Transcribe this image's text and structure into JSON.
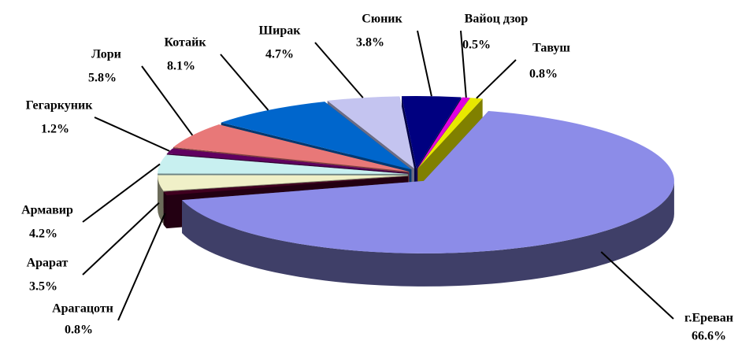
{
  "chart_data": {
    "type": "pie",
    "categories": [
      "г.Ереван",
      "Арагацотн",
      "Арарат",
      "Армавир",
      "Гегаркуник",
      "Лори",
      "Котайк",
      "Ширак",
      "Сюник",
      "Вайоц дзор",
      "Тавуш"
    ],
    "values": [
      66.6,
      0.8,
      3.5,
      4.2,
      1.2,
      5.8,
      8.1,
      4.7,
      3.8,
      0.5,
      0.8
    ],
    "value_labels": [
      "66.6%",
      "0.8%",
      "3.5%",
      "4.2%",
      "1.2%",
      "5.8%",
      "8.1%",
      "4.7%",
      "3.8%",
      "0.5%",
      "0.8%"
    ],
    "colors": [
      "#8c8ce8",
      "#400020",
      "#f0f0c8",
      "#c8f0f0",
      "#600060",
      "#e87878",
      "#0066cc",
      "#c4c4f0",
      "#000080",
      "#e000e0",
      "#e8e800"
    ]
  }
}
